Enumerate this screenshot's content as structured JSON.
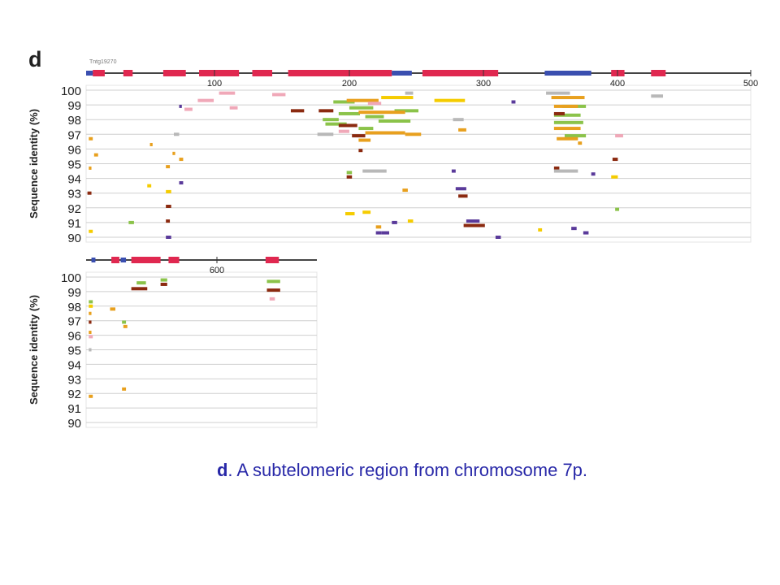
{
  "figure": {
    "panel_letter": "d",
    "contig_label": "Tntg19270",
    "colors": {
      "grid": "#cfcfcf",
      "axis": "#333333",
      "ideogram_line": "#444444",
      "ideogram_red": "#e02850",
      "ideogram_blue": "#3a4fb0",
      "green": "#8bc34a",
      "orange": "#e8a01e",
      "yellow": "#f5cc00",
      "brown": "#8b2a10",
      "purple": "#5a3a9a",
      "pink": "#f0a8b8",
      "gray": "#b8b8b8"
    }
  },
  "chart_data": [
    {
      "type": "scatter",
      "panel": "top",
      "ylabel": "Sequence identity (%)",
      "xlabel": "",
      "xlim": [
        0,
        500
      ],
      "ylim": [
        90,
        100
      ],
      "x_ticks": [
        "100",
        "200",
        "300",
        "400",
        "500"
      ],
      "y_ticks": [
        "100",
        "99",
        "98",
        "97",
        "96",
        "95",
        "94",
        "93",
        "92",
        "91",
        "90"
      ],
      "ideogram": {
        "red": [
          [
            5,
            14
          ],
          [
            28,
            35
          ],
          [
            58,
            75
          ],
          [
            85,
            115
          ],
          [
            125,
            140
          ],
          [
            152,
            230
          ],
          [
            253,
            310
          ],
          [
            395,
            405
          ],
          [
            425,
            436
          ]
        ],
        "blue": [
          [
            0,
            5
          ],
          [
            230,
            245
          ],
          [
            345,
            380
          ]
        ]
      },
      "segments": [
        {
          "c": "green",
          "x": [
            178,
            190
          ],
          "y": 98.0
        },
        {
          "c": "green",
          "x": [
            180,
            196
          ],
          "y": 97.7
        },
        {
          "c": "green",
          "x": [
            190,
            206
          ],
          "y": 98.4
        },
        {
          "c": "green",
          "x": [
            198,
            216
          ],
          "y": 98.8
        },
        {
          "c": "green",
          "x": [
            210,
            224
          ],
          "y": 98.2
        },
        {
          "c": "green",
          "x": [
            220,
            244
          ],
          "y": 97.9
        },
        {
          "c": "green",
          "x": [
            232,
            250
          ],
          "y": 98.6
        },
        {
          "c": "green",
          "x": [
            186,
            202
          ],
          "y": 99.2
        },
        {
          "c": "green",
          "x": [
            205,
            216
          ],
          "y": 97.4
        },
        {
          "c": "green",
          "x": [
            352,
            372
          ],
          "y": 98.3
        },
        {
          "c": "green",
          "x": [
            352,
            374
          ],
          "y": 97.8
        },
        {
          "c": "green",
          "x": [
            358,
            376
          ],
          "y": 98.9
        },
        {
          "c": "green",
          "x": [
            360,
            376
          ],
          "y": 96.9
        },
        {
          "c": "green",
          "x": [
            196,
            200
          ],
          "y": 94.4
        },
        {
          "c": "green",
          "x": [
            32,
            36
          ],
          "y": 91.0
        },
        {
          "c": "green",
          "x": [
            398,
            401
          ],
          "y": 91.9
        },
        {
          "c": "orange",
          "x": [
            196,
            220
          ],
          "y": 99.3
        },
        {
          "c": "orange",
          "x": [
            205,
            240
          ],
          "y": 98.5
        },
        {
          "c": "orange",
          "x": [
            210,
            240
          ],
          "y": 97.1
        },
        {
          "c": "orange",
          "x": [
            350,
            375
          ],
          "y": 99.5
        },
        {
          "c": "orange",
          "x": [
            352,
            370
          ],
          "y": 98.9
        },
        {
          "c": "orange",
          "x": [
            352,
            372
          ],
          "y": 97.4
        },
        {
          "c": "orange",
          "x": [
            354,
            370
          ],
          "y": 96.7
        },
        {
          "c": "orange",
          "x": [
            205,
            214
          ],
          "y": 96.6
        },
        {
          "c": "orange",
          "x": [
            280,
            286
          ],
          "y": 97.3
        },
        {
          "c": "orange",
          "x": [
            240,
            252
          ],
          "y": 97.0
        },
        {
          "c": "orange",
          "x": [
            2,
            5
          ],
          "y": 96.7
        },
        {
          "c": "orange",
          "x": [
            6,
            9
          ],
          "y": 95.6
        },
        {
          "c": "orange",
          "x": [
            48,
            50
          ],
          "y": 96.3
        },
        {
          "c": "orange",
          "x": [
            60,
            63
          ],
          "y": 94.8
        },
        {
          "c": "orange",
          "x": [
            65,
            67
          ],
          "y": 95.7
        },
        {
          "c": "orange",
          "x": [
            70,
            73
          ],
          "y": 95.3
        },
        {
          "c": "orange",
          "x": [
            238,
            242
          ],
          "y": 93.2
        },
        {
          "c": "orange",
          "x": [
            218,
            222
          ],
          "y": 90.7
        },
        {
          "c": "orange",
          "x": [
            2,
            4
          ],
          "y": 94.7
        },
        {
          "c": "orange",
          "x": [
            370,
            373
          ],
          "y": 96.4
        },
        {
          "c": "yellow",
          "x": [
            222,
            246
          ],
          "y": 99.5
        },
        {
          "c": "yellow",
          "x": [
            262,
            285
          ],
          "y": 99.3
        },
        {
          "c": "yellow",
          "x": [
            195,
            202
          ],
          "y": 91.6
        },
        {
          "c": "yellow",
          "x": [
            208,
            214
          ],
          "y": 91.7
        },
        {
          "c": "yellow",
          "x": [
            395,
            400
          ],
          "y": 94.1
        },
        {
          "c": "yellow",
          "x": [
            2,
            5
          ],
          "y": 90.4
        },
        {
          "c": "yellow",
          "x": [
            46,
            49
          ],
          "y": 93.5
        },
        {
          "c": "yellow",
          "x": [
            60,
            64
          ],
          "y": 93.1
        },
        {
          "c": "yellow",
          "x": [
            242,
            246
          ],
          "y": 91.1
        },
        {
          "c": "yellow",
          "x": [
            340,
            343
          ],
          "y": 90.5
        },
        {
          "c": "brown",
          "x": [
            175,
            186
          ],
          "y": 98.6
        },
        {
          "c": "brown",
          "x": [
            154,
            164
          ],
          "y": 98.6
        },
        {
          "c": "brown",
          "x": [
            190,
            204
          ],
          "y": 97.6
        },
        {
          "c": "brown",
          "x": [
            200,
            210
          ],
          "y": 96.9
        },
        {
          "c": "brown",
          "x": [
            352,
            360
          ],
          "y": 98.4
        },
        {
          "c": "brown",
          "x": [
            280,
            287
          ],
          "y": 92.8
        },
        {
          "c": "brown",
          "x": [
            284,
            300
          ],
          "y": 90.8
        },
        {
          "c": "brown",
          "x": [
            60,
            64
          ],
          "y": 92.1
        },
        {
          "c": "brown",
          "x": [
            60,
            63
          ],
          "y": 91.1
        },
        {
          "c": "brown",
          "x": [
            196,
            200
          ],
          "y": 94.1
        },
        {
          "c": "brown",
          "x": [
            205,
            208
          ],
          "y": 95.9
        },
        {
          "c": "brown",
          "x": [
            396,
            400
          ],
          "y": 95.3
        },
        {
          "c": "brown",
          "x": [
            1,
            4
          ],
          "y": 93.0
        },
        {
          "c": "brown",
          "x": [
            352,
            356
          ],
          "y": 94.7
        },
        {
          "c": "purple",
          "x": [
            278,
            286
          ],
          "y": 93.3
        },
        {
          "c": "purple",
          "x": [
            286,
            296
          ],
          "y": 91.1
        },
        {
          "c": "purple",
          "x": [
            218,
            222
          ],
          "y": 90.3
        },
        {
          "c": "purple",
          "x": [
            222,
            228
          ],
          "y": 90.3
        },
        {
          "c": "purple",
          "x": [
            230,
            234
          ],
          "y": 91.0
        },
        {
          "c": "purple",
          "x": [
            374,
            378
          ],
          "y": 90.3
        },
        {
          "c": "purple",
          "x": [
            380,
            383
          ],
          "y": 94.3
        },
        {
          "c": "purple",
          "x": [
            60,
            64
          ],
          "y": 90.0
        },
        {
          "c": "purple",
          "x": [
            70,
            73
          ],
          "y": 93.7
        },
        {
          "c": "purple",
          "x": [
            275,
            278
          ],
          "y": 94.5
        },
        {
          "c": "purple",
          "x": [
            308,
            312
          ],
          "y": 90.0
        },
        {
          "c": "purple",
          "x": [
            365,
            369
          ],
          "y": 90.6
        },
        {
          "c": "purple",
          "x": [
            70,
            72
          ],
          "y": 98.9
        },
        {
          "c": "purple",
          "x": [
            320,
            323
          ],
          "y": 99.2
        },
        {
          "c": "pink",
          "x": [
            100,
            112
          ],
          "y": 99.8
        },
        {
          "c": "pink",
          "x": [
            140,
            150
          ],
          "y": 99.7
        },
        {
          "c": "pink",
          "x": [
            84,
            96
          ],
          "y": 99.3
        },
        {
          "c": "pink",
          "x": [
            190,
            198
          ],
          "y": 97.2
        },
        {
          "c": "pink",
          "x": [
            398,
            404
          ],
          "y": 96.9
        },
        {
          "c": "pink",
          "x": [
            74,
            80
          ],
          "y": 98.7
        },
        {
          "c": "pink",
          "x": [
            108,
            114
          ],
          "y": 98.8
        },
        {
          "c": "pink",
          "x": [
            212,
            222
          ],
          "y": 99.1
        },
        {
          "c": "gray",
          "x": [
            208,
            226
          ],
          "y": 94.5
        },
        {
          "c": "gray",
          "x": [
            352,
            370
          ],
          "y": 94.5
        },
        {
          "c": "gray",
          "x": [
            346,
            364
          ],
          "y": 99.8
        },
        {
          "c": "gray",
          "x": [
            425,
            434
          ],
          "y": 99.6
        },
        {
          "c": "gray",
          "x": [
            174,
            186
          ],
          "y": 97.0
        },
        {
          "c": "gray",
          "x": [
            276,
            284
          ],
          "y": 98.0
        },
        {
          "c": "gray",
          "x": [
            66,
            70
          ],
          "y": 97.0
        },
        {
          "c": "gray",
          "x": [
            240,
            246
          ],
          "y": 99.8
        }
      ]
    },
    {
      "type": "scatter",
      "panel": "bottom",
      "ylabel": "Sequence identity (%)",
      "xlabel": "",
      "xlim": [
        500,
        600
      ],
      "ylim": [
        90,
        100
      ],
      "x_ticks": [
        "600"
      ],
      "y_ticks": [
        "100",
        "99",
        "98",
        "97",
        "96",
        "95",
        "94",
        "93",
        "92",
        "91",
        "90"
      ],
      "ideogram": {
        "red": [
          [
            519,
            525
          ],
          [
            534,
            556
          ],
          [
            562,
            570
          ],
          [
            635,
            645
          ]
        ],
        "blue": [
          [
            504,
            507
          ],
          [
            526,
            530
          ]
        ]
      },
      "segments": [
        {
          "c": "brown",
          "x": [
            534,
            546
          ],
          "y": 99.2
        },
        {
          "c": "brown",
          "x": [
            556,
            561
          ],
          "y": 99.5
        },
        {
          "c": "brown",
          "x": [
            636,
            646
          ],
          "y": 99.1
        },
        {
          "c": "brown",
          "x": [
            502,
            504
          ],
          "y": 96.9
        },
        {
          "c": "green",
          "x": [
            538,
            545
          ],
          "y": 99.6
        },
        {
          "c": "green",
          "x": [
            556,
            561
          ],
          "y": 99.8
        },
        {
          "c": "green",
          "x": [
            636,
            646
          ],
          "y": 99.7
        },
        {
          "c": "green",
          "x": [
            502,
            505
          ],
          "y": 98.3
        },
        {
          "c": "green",
          "x": [
            527,
            530
          ],
          "y": 96.9
        },
        {
          "c": "orange",
          "x": [
            502,
            504
          ],
          "y": 97.5
        },
        {
          "c": "orange",
          "x": [
            518,
            522
          ],
          "y": 97.8
        },
        {
          "c": "orange",
          "x": [
            502,
            505
          ],
          "y": 91.8
        },
        {
          "c": "orange",
          "x": [
            527,
            530
          ],
          "y": 92.3
        },
        {
          "c": "orange",
          "x": [
            528,
            531
          ],
          "y": 96.6
        },
        {
          "c": "orange",
          "x": [
            502,
            504
          ],
          "y": 96.2
        },
        {
          "c": "yellow",
          "x": [
            502,
            505
          ],
          "y": 98.0
        },
        {
          "c": "pink",
          "x": [
            638,
            642
          ],
          "y": 98.5
        },
        {
          "c": "pink",
          "x": [
            502,
            505
          ],
          "y": 95.9
        },
        {
          "c": "gray",
          "x": [
            502,
            504
          ],
          "y": 95.0
        }
      ]
    }
  ],
  "caption": {
    "bold": "d",
    "text": ". A subtelomeric region from chromosome 7p."
  }
}
